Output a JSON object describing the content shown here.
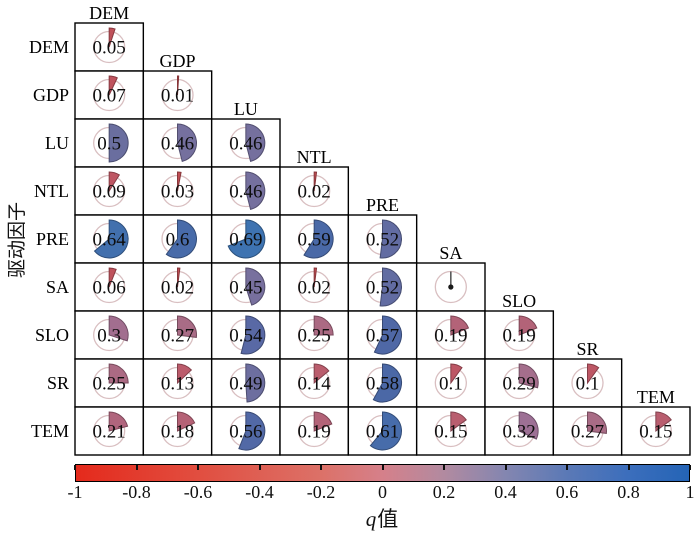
{
  "figure_title": "driving-factor interaction q-value pie matrix",
  "y_axis": {
    "label": "驱动因子"
  },
  "colorbar": {
    "label_symbol": "q",
    "label_text": "值",
    "min": -1,
    "max": 1,
    "tick_labels": [
      "-1",
      "-0.8",
      "-0.6",
      "-0.4",
      "-0.2",
      "0",
      "0.2",
      "0.4",
      "0.6",
      "0.8",
      "1"
    ],
    "gradient_stops": [
      [
        -1.0,
        "#e42a1c"
      ],
      [
        -0.6,
        "#e14e40"
      ],
      [
        -0.2,
        "#dc7168"
      ],
      [
        0.0,
        "#d5808a"
      ],
      [
        0.2,
        "#b28aa0"
      ],
      [
        0.4,
        "#8486b0"
      ],
      [
        0.6,
        "#5b79b6"
      ],
      [
        0.8,
        "#3c6ebc"
      ],
      [
        1.0,
        "#2464b6"
      ]
    ]
  },
  "chart_data": {
    "type": "correlation-pie-matrix",
    "title": "",
    "xlabel": "",
    "ylabel": "驱动因子",
    "legend_label": "q值",
    "value_range": [
      -1,
      1
    ],
    "factors": [
      "DEM",
      "GDP",
      "LU",
      "NTL",
      "PRE",
      "SA",
      "SLO",
      "SR",
      "TEM"
    ],
    "note": "lower-triangular matrix; each cell is a pie wedge whose fraction and color encode the q value; SA–SA diagonal shown as a zero needle with no number",
    "matrix": [
      [
        0.05
      ],
      [
        0.07,
        0.01
      ],
      [
        0.5,
        0.46,
        0.46
      ],
      [
        0.09,
        0.03,
        0.46,
        0.02
      ],
      [
        0.64,
        0.6,
        0.69,
        0.59,
        0.52
      ],
      [
        0.06,
        0.02,
        0.45,
        0.02,
        0.52,
        0
      ],
      [
        0.3,
        0.27,
        0.54,
        0.25,
        0.57,
        0.19,
        0.19
      ],
      [
        0.25,
        0.13,
        0.49,
        0.14,
        0.58,
        0.1,
        0.29,
        0.1
      ],
      [
        0.21,
        0.18,
        0.56,
        0.19,
        0.61,
        0.15,
        0.32,
        0.27,
        0.15
      ]
    ],
    "wedge_colormap_stops": [
      [
        0.0,
        "#c24a4e"
      ],
      [
        0.1,
        "#bd5765"
      ],
      [
        0.15,
        "#b95e6f"
      ],
      [
        0.21,
        "#b0657d"
      ],
      [
        0.27,
        "#a96c86"
      ],
      [
        0.32,
        "#9d7095"
      ],
      [
        0.45,
        "#78709e"
      ],
      [
        0.5,
        "#6a6e9f"
      ],
      [
        0.54,
        "#5969a5"
      ],
      [
        0.58,
        "#4b68a6"
      ],
      [
        0.64,
        "#4270ae"
      ],
      [
        0.69,
        "#3e73b1"
      ],
      [
        1.0,
        "#2b66b5"
      ]
    ],
    "circle_outline_color": "#d9bfc1",
    "grid_color": "#000000"
  }
}
